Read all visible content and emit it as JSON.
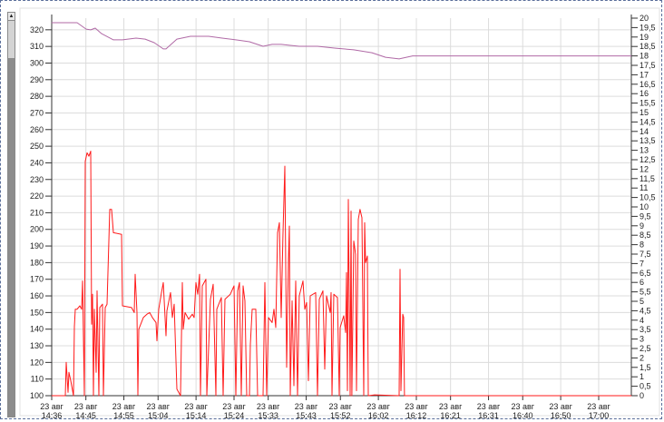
{
  "scrollbar": {
    "up_arrow": "▲"
  },
  "colors": {
    "series_red": "#ff1a1a",
    "series_purple": "#b06aa6",
    "grid": "#dcdcdc",
    "axis": "#333333"
  },
  "chart_data": {
    "type": "line",
    "title": "",
    "xlabel": "",
    "ylabel_left": "",
    "ylabel_right": "",
    "grid": true,
    "xlim": [
      "14:36:00",
      "17:08:36"
    ],
    "ylim_left": [
      100,
      327
    ],
    "ylim_right": [
      0,
      20
    ],
    "x_ticks": [
      {
        "date": "23 авг",
        "time": "14:36"
      },
      {
        "date": "23 авг",
        "time": "14:45"
      },
      {
        "date": "23 авг",
        "time": "14:55"
      },
      {
        "date": "23 авг",
        "time": "15:04"
      },
      {
        "date": "23 авг",
        "time": "15:14"
      },
      {
        "date": "23 авг",
        "time": "15:24"
      },
      {
        "date": "23 авг",
        "time": "15:33"
      },
      {
        "date": "23 авг",
        "time": "15:43"
      },
      {
        "date": "23 авг",
        "time": "15:52"
      },
      {
        "date": "23 авг",
        "time": "16:02"
      },
      {
        "date": "23 авг",
        "time": "16:12"
      },
      {
        "date": "23 авг",
        "time": "16:21"
      },
      {
        "date": "23 авг",
        "time": "16:31"
      },
      {
        "date": "23 авг",
        "time": "16:40"
      },
      {
        "date": "23 авг",
        "time": "16:50"
      },
      {
        "date": "23 авг",
        "time": "17:00"
      }
    ],
    "y_left_ticks": [
      "100",
      "110",
      "120",
      "130",
      "140",
      "150",
      "160",
      "170",
      "180",
      "190",
      "200",
      "210",
      "220",
      "230",
      "240",
      "250",
      "260",
      "270",
      "280",
      "290",
      "300",
      "310",
      "320"
    ],
    "y_right_ticks": [
      "0",
      "0,5",
      "1",
      "1,5",
      "2",
      "2,5",
      "3",
      "3,5",
      "4",
      "4,5",
      "5",
      "5,5",
      "6",
      "6,5",
      "7",
      "7,5",
      "8",
      "8,5",
      "9",
      "9,5",
      "10",
      "10,5",
      "11",
      "11,5",
      "12",
      "12,5",
      "13",
      "13,5",
      "14",
      "14,5",
      "15",
      "15,5",
      "16",
      "16,5",
      "17",
      "17,5",
      "18",
      "18,5",
      "19",
      "19,5",
      "20"
    ],
    "series": [
      {
        "axis": "left",
        "color": "#ff1a1a",
        "points": [
          [
            "14:36:00",
            100
          ],
          [
            "14:39:35",
            100
          ],
          [
            "14:39:49",
            120
          ],
          [
            "14:40:18",
            102
          ],
          [
            "14:40:32",
            114
          ],
          [
            "14:41:01",
            109
          ],
          [
            "14:41:30",
            103
          ],
          [
            "14:41:44",
            100
          ],
          [
            "14:41:58",
            141.5
          ],
          [
            "14:42:13",
            152
          ],
          [
            "14:42:41",
            152
          ],
          [
            "14:43:24",
            154
          ],
          [
            "14:43:53",
            152
          ],
          [
            "14:44:07",
            169
          ],
          [
            "14:44:36",
            100
          ],
          [
            "14:44:50",
            241
          ],
          [
            "14:45:19",
            246
          ],
          [
            "14:45:47",
            244
          ],
          [
            "14:46:16",
            247
          ],
          [
            "14:46:31",
            143
          ],
          [
            "14:46:45",
            161
          ],
          [
            "14:46:59",
            100
          ],
          [
            "14:47:13",
            152
          ],
          [
            "14:47:42",
            114
          ],
          [
            "14:47:56",
            163
          ],
          [
            "14:48:25",
            100
          ],
          [
            "14:48:39",
            153
          ],
          [
            "14:49:22",
            155
          ],
          [
            "14:49:37",
            100
          ],
          [
            "14:50:05",
            153
          ],
          [
            "14:50:34",
            155
          ],
          [
            "14:51:17",
            212
          ],
          [
            "14:51:46",
            212
          ],
          [
            "14:52:14",
            198
          ],
          [
            "14:54:23",
            197
          ],
          [
            "14:54:38",
            154
          ],
          [
            "14:57:01",
            153
          ],
          [
            "14:57:44",
            150
          ],
          [
            "14:57:58",
            173
          ],
          [
            "14:58:27",
            150
          ],
          [
            "14:58:41",
            100.5
          ],
          [
            "14:58:55",
            140
          ],
          [
            "15:00:07",
            147
          ],
          [
            "15:01:04",
            149
          ],
          [
            "15:01:47",
            150
          ],
          [
            "15:02:31",
            147
          ],
          [
            "15:03:28",
            144
          ],
          [
            "15:03:42",
            133
          ],
          [
            "15:04:11",
            152
          ],
          [
            "15:04:54",
            162
          ],
          [
            "15:05:22",
            168
          ],
          [
            "15:06:05",
            136
          ],
          [
            "15:06:20",
            151
          ],
          [
            "15:07:17",
            162
          ],
          [
            "15:07:46",
            147
          ],
          [
            "15:08:14",
            155
          ],
          [
            "15:08:57",
            104
          ],
          [
            "15:09:55",
            100
          ],
          [
            "15:10:23",
            168
          ],
          [
            "15:10:38",
            140
          ],
          [
            "15:11:06",
            150
          ],
          [
            "15:12:04",
            146
          ],
          [
            "15:13:01",
            149
          ],
          [
            "15:13:29",
            147
          ],
          [
            "15:13:58",
            168
          ],
          [
            "15:14:27",
            161
          ],
          [
            "15:14:55",
            173
          ],
          [
            "15:15:10",
            100
          ],
          [
            "15:15:38",
            166
          ],
          [
            "15:16:36",
            170
          ],
          [
            "15:16:50",
            100
          ],
          [
            "15:17:47",
            158
          ],
          [
            "15:18:31",
            167
          ],
          [
            "15:19:13",
            100
          ],
          [
            "15:19:28",
            152
          ],
          [
            "15:20:40",
            159
          ],
          [
            "15:21:08",
            100
          ],
          [
            "15:21:37",
            158
          ],
          [
            "15:23:02",
            161
          ],
          [
            "15:24:00",
            166
          ],
          [
            "15:24:29",
            100
          ],
          [
            "15:24:57",
            163
          ],
          [
            "15:25:26",
            168
          ],
          [
            "15:25:55",
            100
          ],
          [
            "15:26:23",
            166
          ],
          [
            "15:26:52",
            157
          ],
          [
            "15:27:20",
            100
          ],
          [
            "15:28:04",
            100
          ],
          [
            "15:28:18",
            131
          ],
          [
            "15:28:46",
            152
          ],
          [
            "15:29:44",
            152
          ],
          [
            "15:30:13",
            100
          ],
          [
            "15:31:38",
            100
          ],
          [
            "15:32:07",
            168
          ],
          [
            "15:32:36",
            100
          ],
          [
            "15:33:04",
            147
          ],
          [
            "15:34:02",
            144
          ],
          [
            "15:34:31",
            152
          ],
          [
            "15:34:59",
            141
          ],
          [
            "15:35:28",
            198
          ],
          [
            "15:35:56",
            204
          ],
          [
            "15:36:25",
            147
          ],
          [
            "15:36:53",
            196
          ],
          [
            "15:37:22",
            238
          ],
          [
            "15:37:51",
            117
          ],
          [
            "15:38:20",
            182
          ],
          [
            "15:38:34",
            202
          ],
          [
            "15:38:48",
            100
          ],
          [
            "15:39:17",
            157
          ],
          [
            "15:39:46",
            106
          ],
          [
            "15:40:14",
            169
          ],
          [
            "15:40:43",
            100
          ],
          [
            "15:41:11",
            160
          ],
          [
            "15:42:09",
            169
          ],
          [
            "15:42:38",
            152
          ],
          [
            "15:43:06",
            156
          ],
          [
            "15:43:35",
            109
          ],
          [
            "15:44:04",
            160
          ],
          [
            "15:45:29",
            162
          ],
          [
            "15:45:58",
            100
          ],
          [
            "15:46:27",
            158
          ],
          [
            "15:47:24",
            163
          ],
          [
            "15:47:53",
            116
          ],
          [
            "15:48:22",
            160
          ],
          [
            "15:49:19",
            150
          ],
          [
            "15:49:33",
            162
          ],
          [
            "15:49:47",
            100
          ],
          [
            "15:50:16",
            161
          ],
          [
            "15:51:13",
            159
          ],
          [
            "15:51:42",
            100
          ],
          [
            "15:51:56",
            141
          ],
          [
            "15:52:53",
            148
          ],
          [
            "15:53:22",
            138
          ],
          [
            "15:53:37",
            174
          ],
          [
            "15:53:51",
            103
          ],
          [
            "15:54:05",
            218
          ],
          [
            "15:54:34",
            100
          ],
          [
            "15:54:48",
            211
          ],
          [
            "15:55:02",
            100
          ],
          [
            "15:55:31",
            193
          ],
          [
            "15:56:00",
            185
          ],
          [
            "15:56:14",
            103
          ],
          [
            "15:56:43",
            206
          ],
          [
            "15:57:11",
            212
          ],
          [
            "15:57:40",
            207
          ],
          [
            "15:58:09",
            100
          ],
          [
            "15:58:23",
            204
          ],
          [
            "15:58:37",
            180
          ],
          [
            "15:59:06",
            184
          ],
          [
            "15:59:20",
            100
          ],
          [
            "16:01:01",
            100.5
          ],
          [
            "16:07:28",
            100
          ],
          [
            "16:07:42",
            176
          ],
          [
            "16:07:56",
            103
          ],
          [
            "16:08:25",
            149
          ],
          [
            "16:08:39",
            147
          ],
          [
            "16:08:53",
            100
          ],
          [
            "17:08:36",
            100
          ]
        ]
      },
      {
        "axis": "right",
        "color": "#b06aa6",
        "points": [
          [
            "14:36:00",
            19.76
          ],
          [
            "14:42:41",
            19.76
          ],
          [
            "14:45:04",
            19.42
          ],
          [
            "14:46:16",
            19.38
          ],
          [
            "14:47:28",
            19.47
          ],
          [
            "14:49:08",
            19.18
          ],
          [
            "14:52:14",
            18.85
          ],
          [
            "14:54:38",
            18.85
          ],
          [
            "14:58:13",
            18.94
          ],
          [
            "15:00:36",
            18.89
          ],
          [
            "15:02:59",
            18.7
          ],
          [
            "15:05:22",
            18.37
          ],
          [
            "15:06:05",
            18.37
          ],
          [
            "15:08:57",
            18.89
          ],
          [
            "15:12:32",
            19.04
          ],
          [
            "15:17:19",
            19.04
          ],
          [
            "15:20:53",
            18.94
          ],
          [
            "15:24:29",
            18.85
          ],
          [
            "15:28:04",
            18.75
          ],
          [
            "15:31:38",
            18.51
          ],
          [
            "15:34:02",
            18.61
          ],
          [
            "15:36:25",
            18.61
          ],
          [
            "15:38:48",
            18.56
          ],
          [
            "15:41:11",
            18.51
          ],
          [
            "15:45:58",
            18.51
          ],
          [
            "15:50:45",
            18.41
          ],
          [
            "15:55:31",
            18.32
          ],
          [
            "16:00:18",
            18.17
          ],
          [
            "16:03:53",
            17.93
          ],
          [
            "16:07:28",
            17.84
          ],
          [
            "16:11:02",
            18.0
          ],
          [
            "17:08:36",
            18.0
          ]
        ]
      }
    ]
  }
}
